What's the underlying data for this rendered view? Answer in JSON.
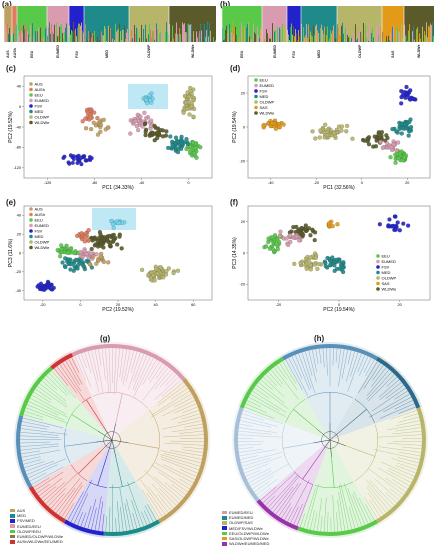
{
  "colors": {
    "AUS": "#c0a060",
    "AUSh": "#e07b5f",
    "EEU": "#59c94a",
    "EUMED": "#d99bb0",
    "FSV": "#2222cc",
    "MED": "#1f8a8a",
    "OLDWP": "#b7b56a",
    "WLDWe": "#5a5a2a",
    "SAS": "#e39a18"
  },
  "panels": {
    "a": {
      "label": "(a)",
      "groups": [
        "AUS",
        "AUSh",
        "EEU",
        "EUMED",
        "FSV",
        "MED",
        "OLDWP",
        "WLDWe"
      ]
    },
    "b": {
      "label": "(b)",
      "groups": [
        "EEU",
        "EUMED",
        "FSV",
        "MED",
        "OLDWP",
        "SAS",
        "WLDWe"
      ]
    },
    "c": {
      "label": "(c)",
      "xlabel": "PC1 (34.33%)",
      "ylabel": "PC2 (19.52%)",
      "legend": [
        "AUS",
        "AUSh",
        "EEU",
        "EUMED",
        "FSV",
        "MED",
        "OLDWP",
        "WLDWe"
      ],
      "xticks": [
        "-120",
        "-80",
        "-40",
        "0"
      ],
      "yticks": [
        "40",
        "0",
        "-40",
        "-80",
        "-120"
      ]
    },
    "d": {
      "label": "(d)",
      "xlabel": "PC1 (32.56%)",
      "ylabel": "PC2 (19.54%)",
      "legend": [
        "EEU",
        "EUMED",
        "FSV",
        "MED",
        "OLDWP",
        "SAS",
        "WLDWe"
      ],
      "xticks": [
        "-40",
        "-20",
        "0",
        "20"
      ],
      "yticks": [
        "20",
        "0",
        "-20"
      ]
    },
    "e": {
      "label": "(e)",
      "xlabel": "PC2 (19.52%)",
      "ylabel": "PC3 (11.6%)",
      "legend": [
        "AUS",
        "AUSh",
        "EEU",
        "EUMED",
        "FSV",
        "MED",
        "OLDWP",
        "WLDWe"
      ],
      "xticks": [
        "-20",
        "0",
        "20",
        "40",
        "60"
      ],
      "yticks": [
        "40",
        "20",
        "0",
        "-20",
        "-40"
      ]
    },
    "f": {
      "label": "(f)",
      "xlabel": "PC2 (19.54%)",
      "ylabel": "PC3 (14.35%)",
      "legend": [
        "EEU",
        "EUMED",
        "FSV",
        "MED",
        "OLDWP",
        "SAS",
        "WLDWe"
      ],
      "xticks": [
        "-20",
        "0",
        "20"
      ],
      "yticks": [
        "20",
        "0",
        "-20"
      ]
    },
    "g": {
      "label": "(g)",
      "legend": [
        {
          "text": "AUS",
          "color": "#c0a060"
        },
        {
          "text": "MED",
          "color": "#1f8a8a"
        },
        {
          "text": "FSV/MED",
          "color": "#2222cc"
        },
        {
          "text": "EUMED/EEU",
          "color": "#d99bb0"
        },
        {
          "text": "OLDWP/EEU",
          "color": "#59c94a"
        },
        {
          "text": "EUMED/OLDWP/WLDWe",
          "color": "#8a7a3a"
        },
        {
          "text": "AUSh/WLDWe/EEU/MED",
          "color": "#cc3333"
        }
      ]
    },
    "h": {
      "label": "(h)",
      "legend": [
        {
          "text": "EUMED/EEU",
          "color": "#d99bb0"
        },
        {
          "text": "EUMED/MED",
          "color": "#1f8a8a"
        },
        {
          "text": "OLDWP/SAS",
          "color": "#b7b56a"
        },
        {
          "text": "MED/FSV/WLDWe",
          "color": "#2222cc"
        },
        {
          "text": "EEU/OLDWP/WLDWe",
          "color": "#59c94a"
        },
        {
          "text": "SAS/OLDWP/WLDWe",
          "color": "#e39a18"
        },
        {
          "text": "WLDWe/EUMED/MED",
          "color": "#9933aa"
        }
      ]
    }
  }
}
